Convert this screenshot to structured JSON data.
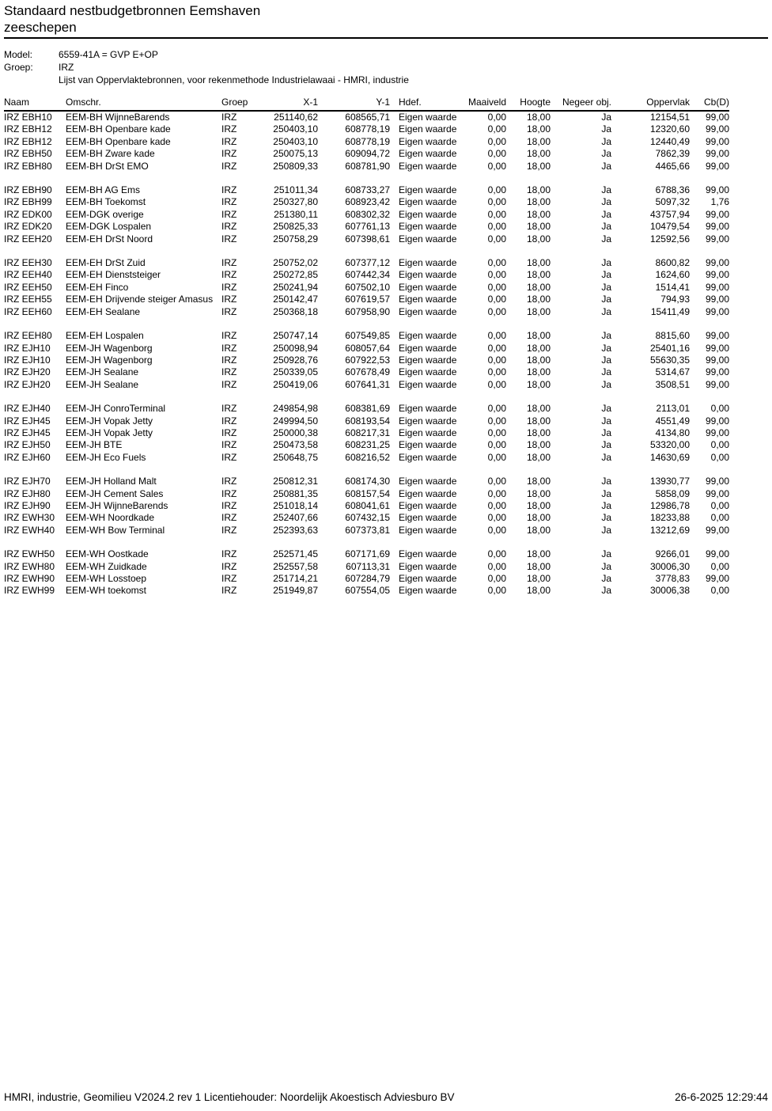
{
  "page": {
    "title_line1": "Standaard nestbudgetbronnen Eemshaven",
    "title_line2": "zeeschepen"
  },
  "meta": {
    "model_label": "Model:",
    "model_value": "6559-41A = GVP E+OP",
    "group_label": "Groep:",
    "group_value": "IRZ",
    "list_description": "Lijst van Oppervlaktebronnen, voor rekenmethode Industrielawaai - HMRI, industrie"
  },
  "table": {
    "columns": [
      {
        "key": "naam",
        "label": "Naam",
        "align": "left"
      },
      {
        "key": "omschr",
        "label": "Omschr.",
        "align": "left"
      },
      {
        "key": "groep",
        "label": "Groep",
        "align": "left"
      },
      {
        "key": "x1",
        "label": "X-1",
        "align": "right"
      },
      {
        "key": "y1",
        "label": "Y-1",
        "align": "right"
      },
      {
        "key": "hdef",
        "label": "Hdef.",
        "align": "left"
      },
      {
        "key": "maaiveld",
        "label": "Maaiveld",
        "align": "right"
      },
      {
        "key": "hoogte",
        "label": "Hoogte",
        "align": "right"
      },
      {
        "key": "negeer_obj",
        "label": "Negeer obj.",
        "align": "right"
      },
      {
        "key": "oppervlak",
        "label": "Oppervlak",
        "align": "right"
      },
      {
        "key": "cbd",
        "label": "Cb(D)",
        "align": "right"
      }
    ],
    "groups": [
      [
        [
          "IRZ EBH10",
          "EEM-BH WijnneBarends",
          "IRZ",
          "251140,62",
          "608565,71",
          "Eigen waarde",
          "0,00",
          "18,00",
          "Ja",
          "12154,51",
          "99,00"
        ],
        [
          "IRZ EBH12",
          "EEM-BH Openbare kade",
          "IRZ",
          "250403,10",
          "608778,19",
          "Eigen waarde",
          "0,00",
          "18,00",
          "Ja",
          "12320,60",
          "99,00"
        ],
        [
          "IRZ EBH12",
          "EEM-BH Openbare kade",
          "IRZ",
          "250403,10",
          "608778,19",
          "Eigen waarde",
          "0,00",
          "18,00",
          "Ja",
          "12440,49",
          "99,00"
        ],
        [
          "IRZ EBH50",
          "EEM-BH Zware kade",
          "IRZ",
          "250075,13",
          "609094,72",
          "Eigen waarde",
          "0,00",
          "18,00",
          "Ja",
          "7862,39",
          "99,00"
        ],
        [
          "IRZ EBH80",
          "EEM-BH DrSt EMO",
          "IRZ",
          "250809,33",
          "608781,90",
          "Eigen waarde",
          "0,00",
          "18,00",
          "Ja",
          "4465,66",
          "99,00"
        ]
      ],
      [
        [
          "IRZ EBH90",
          "EEM-BH AG Ems",
          "IRZ",
          "251011,34",
          "608733,27",
          "Eigen waarde",
          "0,00",
          "18,00",
          "Ja",
          "6788,36",
          "99,00"
        ],
        [
          "IRZ EBH99",
          "EEM-BH Toekomst",
          "IRZ",
          "250327,80",
          "608923,42",
          "Eigen waarde",
          "0,00",
          "18,00",
          "Ja",
          "5097,32",
          "1,76"
        ],
        [
          "IRZ EDK00",
          "EEM-DGK overige",
          "IRZ",
          "251380,11",
          "608302,32",
          "Eigen waarde",
          "0,00",
          "18,00",
          "Ja",
          "43757,94",
          "99,00"
        ],
        [
          "IRZ EDK20",
          "EEM-DGK Lospalen",
          "IRZ",
          "250825,33",
          "607761,13",
          "Eigen waarde",
          "0,00",
          "18,00",
          "Ja",
          "10479,54",
          "99,00"
        ],
        [
          "IRZ EEH20",
          "EEM-EH DrSt Noord",
          "IRZ",
          "250758,29",
          "607398,61",
          "Eigen waarde",
          "0,00",
          "18,00",
          "Ja",
          "12592,56",
          "99,00"
        ]
      ],
      [
        [
          "IRZ EEH30",
          "EEM-EH DrSt Zuid",
          "IRZ",
          "250752,02",
          "607377,12",
          "Eigen waarde",
          "0,00",
          "18,00",
          "Ja",
          "8600,82",
          "99,00"
        ],
        [
          "IRZ EEH40",
          "EEM-EH Dienststeiger",
          "IRZ",
          "250272,85",
          "607442,34",
          "Eigen waarde",
          "0,00",
          "18,00",
          "Ja",
          "1624,60",
          "99,00"
        ],
        [
          "IRZ EEH50",
          "EEM-EH Finco",
          "IRZ",
          "250241,94",
          "607502,10",
          "Eigen waarde",
          "0,00",
          "18,00",
          "Ja",
          "1514,41",
          "99,00"
        ],
        [
          "IRZ EEH55",
          "EEM-EH Drijvende steiger Amasus",
          "IRZ",
          "250142,47",
          "607619,57",
          "Eigen waarde",
          "0,00",
          "18,00",
          "Ja",
          "794,93",
          "99,00"
        ],
        [
          "IRZ EEH60",
          "EEM-EH Sealane",
          "IRZ",
          "250368,18",
          "607958,90",
          "Eigen waarde",
          "0,00",
          "18,00",
          "Ja",
          "15411,49",
          "99,00"
        ]
      ],
      [
        [
          "IRZ EEH80",
          "EEM-EH Lospalen",
          "IRZ",
          "250747,14",
          "607549,85",
          "Eigen waarde",
          "0,00",
          "18,00",
          "Ja",
          "8815,60",
          "99,00"
        ],
        [
          "IRZ EJH10",
          "EEM-JH Wagenborg",
          "IRZ",
          "250098,94",
          "608057,64",
          "Eigen waarde",
          "0,00",
          "18,00",
          "Ja",
          "25401,16",
          "99,00"
        ],
        [
          "IRZ EJH10",
          "EEM-JH Wagenborg",
          "IRZ",
          "250928,76",
          "607922,53",
          "Eigen waarde",
          "0,00",
          "18,00",
          "Ja",
          "55630,35",
          "99,00"
        ],
        [
          "IRZ EJH20",
          "EEM-JH Sealane",
          "IRZ",
          "250339,05",
          "607678,49",
          "Eigen waarde",
          "0,00",
          "18,00",
          "Ja",
          "5314,67",
          "99,00"
        ],
        [
          "IRZ EJH20",
          "EEM-JH Sealane",
          "IRZ",
          "250419,06",
          "607641,31",
          "Eigen waarde",
          "0,00",
          "18,00",
          "Ja",
          "3508,51",
          "99,00"
        ]
      ],
      [
        [
          "IRZ EJH40",
          "EEM-JH ConroTerminal",
          "IRZ",
          "249854,98",
          "608381,69",
          "Eigen waarde",
          "0,00",
          "18,00",
          "Ja",
          "2113,01",
          "0,00"
        ],
        [
          "IRZ EJH45",
          "EEM-JH Vopak Jetty",
          "IRZ",
          "249994,50",
          "608193,54",
          "Eigen waarde",
          "0,00",
          "18,00",
          "Ja",
          "4551,49",
          "99,00"
        ],
        [
          "IRZ EJH45",
          "EEM-JH Vopak Jetty",
          "IRZ",
          "250000,38",
          "608217,31",
          "Eigen waarde",
          "0,00",
          "18,00",
          "Ja",
          "4134,80",
          "99,00"
        ],
        [
          "IRZ EJH50",
          "EEM-JH BTE",
          "IRZ",
          "250473,58",
          "608231,25",
          "Eigen waarde",
          "0,00",
          "18,00",
          "Ja",
          "53320,00",
          "0,00"
        ],
        [
          "IRZ EJH60",
          "EEM-JH Eco Fuels",
          "IRZ",
          "250648,75",
          "608216,52",
          "Eigen waarde",
          "0,00",
          "18,00",
          "Ja",
          "14630,69",
          "0,00"
        ]
      ],
      [
        [
          "IRZ EJH70",
          "EEM-JH Holland Malt",
          "IRZ",
          "250812,31",
          "608174,30",
          "Eigen waarde",
          "0,00",
          "18,00",
          "Ja",
          "13930,77",
          "99,00"
        ],
        [
          "IRZ EJH80",
          "EEM-JH Cement Sales",
          "IRZ",
          "250881,35",
          "608157,54",
          "Eigen waarde",
          "0,00",
          "18,00",
          "Ja",
          "5858,09",
          "99,00"
        ],
        [
          "IRZ EJH90",
          "EEM-JH WijnneBarends",
          "IRZ",
          "251018,14",
          "608041,61",
          "Eigen waarde",
          "0,00",
          "18,00",
          "Ja",
          "12986,78",
          "0,00"
        ],
        [
          "IRZ EWH30",
          "EEM-WH Noordkade",
          "IRZ",
          "252407,66",
          "607432,15",
          "Eigen waarde",
          "0,00",
          "18,00",
          "Ja",
          "18233,88",
          "0,00"
        ],
        [
          "IRZ EWH40",
          "EEM-WH Bow Terminal",
          "IRZ",
          "252393,63",
          "607373,81",
          "Eigen waarde",
          "0,00",
          "18,00",
          "Ja",
          "13212,69",
          "99,00"
        ]
      ],
      [
        [
          "IRZ EWH50",
          "EEM-WH Oostkade",
          "IRZ",
          "252571,45",
          "607171,69",
          "Eigen waarde",
          "0,00",
          "18,00",
          "Ja",
          "9266,01",
          "99,00"
        ],
        [
          "IRZ EWH80",
          "EEM-WH Zuidkade",
          "IRZ",
          "252557,58",
          "607113,31",
          "Eigen waarde",
          "0,00",
          "18,00",
          "Ja",
          "30006,30",
          "0,00"
        ],
        [
          "IRZ EWH90",
          "EEM-WH Losstoep",
          "IRZ",
          "251714,21",
          "607284,79",
          "Eigen waarde",
          "0,00",
          "18,00",
          "Ja",
          "3778,83",
          "99,00"
        ],
        [
          "IRZ EWH99",
          "EEM-WH toekomst",
          "IRZ",
          "251949,87",
          "607554,05",
          "Eigen waarde",
          "0,00",
          "18,00",
          "Ja",
          "30006,38",
          "0,00"
        ]
      ]
    ]
  },
  "footer": {
    "left": "HMRI, industrie, Geomilieu V2024.2 rev 1 Licentiehouder: Noordelijk Akoestisch Adviesburo BV",
    "right": "26-6-2025 12:29:44"
  }
}
